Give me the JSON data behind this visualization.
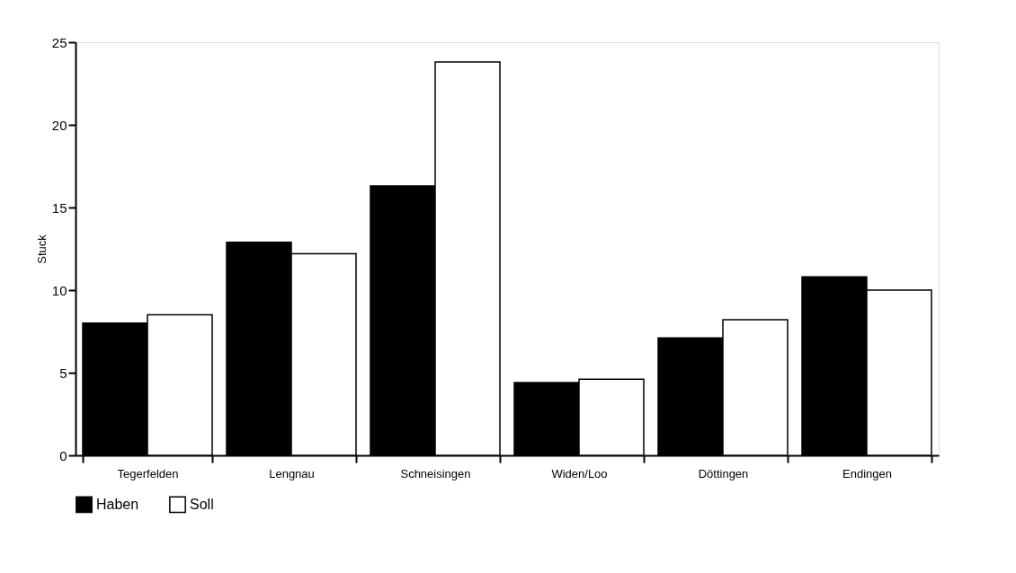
{
  "chart_data": {
    "type": "bar",
    "ylabel": "Stuck",
    "categories": [
      "Tegerfelden",
      "Lengnau",
      "Schneisingen",
      "Widen/Loo",
      "Döttingen",
      "Endingen"
    ],
    "series": [
      {
        "name": "Haben",
        "color": "#000000",
        "values": [
          8.0,
          12.9,
          16.3,
          4.4,
          7.1,
          10.8
        ]
      },
      {
        "name": "Soll",
        "color": "#ffffff",
        "values": [
          8.5,
          12.2,
          23.8,
          4.6,
          8.2,
          10.0
        ]
      }
    ],
    "ylim": [
      0,
      25
    ],
    "yticks": [
      0,
      5,
      10,
      15,
      20,
      25
    ],
    "grid": false,
    "legend": "bottom"
  }
}
